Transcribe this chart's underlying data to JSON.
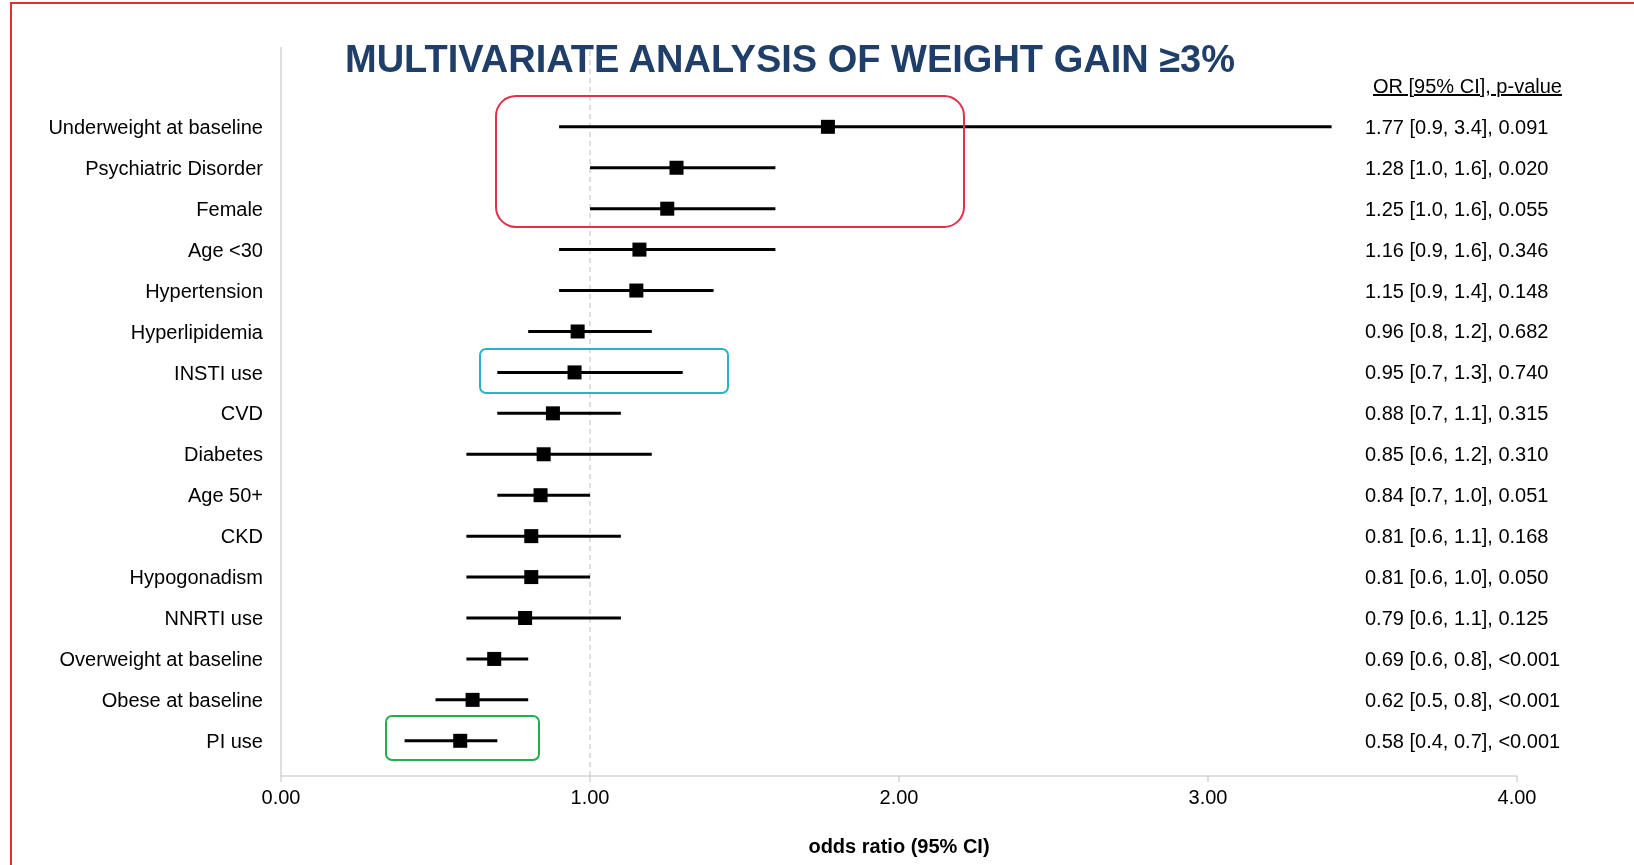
{
  "chart_data": {
    "type": "scatter",
    "orientation": "horizontal",
    "title": "MULTIVARIATE ANALYSIS OF WEIGHT GAIN ≥3%",
    "xlabel": "odds ratio (95% CI)",
    "categories": [
      "Underweight at baseline",
      "Psychiatric Disorder",
      "Female",
      "Age <30",
      "Hypertension",
      "Hyperlipidemia",
      "INSTI use",
      "CVD",
      "Diabetes",
      "Age 50+",
      "CKD",
      "Hypogonadism",
      "NNRTI use",
      "Overweight at baseline",
      "Obese at baseline",
      "PI use"
    ],
    "series": [
      {
        "color": "#000000",
        "values": [
          1.77,
          1.28,
          1.25,
          1.16,
          1.15,
          0.96,
          0.95,
          0.88,
          0.85,
          0.84,
          0.81,
          0.81,
          0.79,
          0.69,
          0.62,
          0.58
        ],
        "errors": [
          [
            0.9,
            3.4
          ],
          [
            1.0,
            1.6
          ],
          [
            1.0,
            1.6
          ],
          [
            0.9,
            1.6
          ],
          [
            0.9,
            1.4
          ],
          [
            0.8,
            1.2
          ],
          [
            0.7,
            1.3
          ],
          [
            0.7,
            1.1
          ],
          [
            0.6,
            1.2
          ],
          [
            0.7,
            1.0
          ],
          [
            0.6,
            1.1
          ],
          [
            0.6,
            1.0
          ],
          [
            0.6,
            1.1
          ],
          [
            0.6,
            0.8
          ],
          [
            0.5,
            0.8
          ],
          [
            0.4,
            0.7
          ]
        ]
      }
    ],
    "xlim": [
      0,
      4
    ],
    "xticks": [
      {
        "value": 0,
        "label": "0.00"
      },
      {
        "value": 1,
        "label": "1.00"
      },
      {
        "value": 2,
        "label": "2.00"
      },
      {
        "value": 3,
        "label": "3.00"
      },
      {
        "value": 4,
        "label": "4.00"
      }
    ],
    "ref_lines": [
      {
        "axis": "x",
        "value": 1,
        "color": "#bfbfbf",
        "line_style": "dashed"
      }
    ],
    "annotations": [
      "OR [95% CI], p-value",
      "1.77 [0.9, 3.4], 0.091",
      "1.28 [1.0, 1.6], 0.020",
      "1.25 [1.0, 1.6], 0.055",
      "1.16 [0.9, 1.6], 0.346",
      "1.15 [0.9, 1.4], 0.148",
      "0.96 [0.8, 1.2], 0.682",
      "0.95 [0.7, 1.3], 0.740",
      "0.88 [0.7, 1.1], 0.315",
      "0.85 [0.6, 1.2], 0.310",
      "0.84 [0.7, 1.0], 0.051",
      "0.81 [0.6, 1.1], 0.168",
      "0.81 [0.6, 1.0], 0.050",
      "0.79 [0.6, 1.1], 0.125",
      "0.69 [0.6, 0.8], <0.001",
      "0.62 [0.5, 0.8], <0.001",
      "0.58 [0.4, 0.7], <0.001"
    ],
    "marker": "square",
    "grid": false,
    "legend": false
  }
}
